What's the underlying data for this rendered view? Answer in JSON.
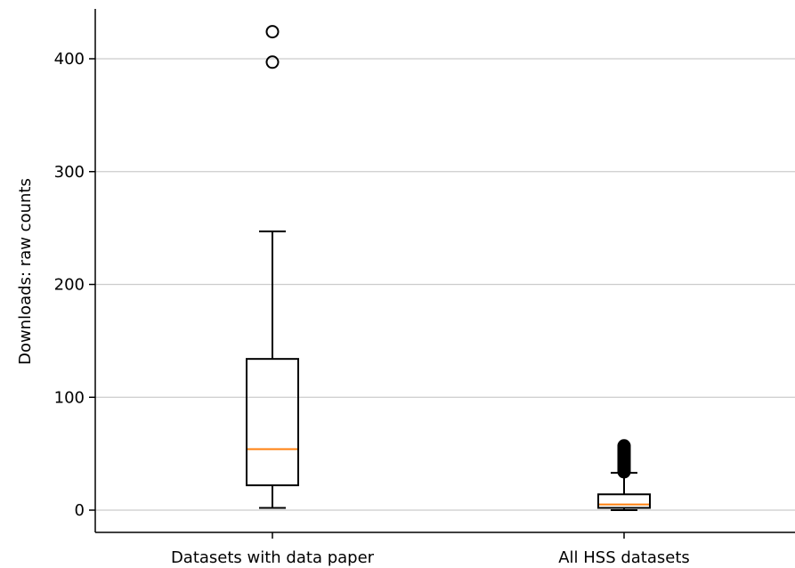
{
  "chart_data": {
    "type": "boxplot",
    "title": "",
    "xlabel": "",
    "ylabel": "Downloads: raw counts",
    "ylim": [
      -20,
      445
    ],
    "yticks": [
      0,
      100,
      200,
      300,
      400
    ],
    "grid": "y",
    "legend": "none",
    "colors": {
      "box": "#000000",
      "median": "#ff7f0e",
      "grid": "#cccccc"
    },
    "categories": [
      "Datasets with data paper",
      "All HSS datasets"
    ],
    "boxes": [
      {
        "name": "Datasets with data paper",
        "whisker_low": 2,
        "q1": 22,
        "median": 54,
        "q3": 134,
        "whisker_high": 247,
        "outliers": [
          397,
          424
        ]
      },
      {
        "name": "All HSS datasets",
        "whisker_low": 0,
        "q1": 2,
        "median": 5,
        "q3": 14,
        "whisker_high": 33,
        "outliers": [
          34,
          35,
          36,
          37,
          38,
          39,
          40,
          41,
          42,
          43,
          44,
          45,
          46,
          47,
          48,
          49,
          50,
          51,
          52,
          53,
          54,
          55,
          56,
          57
        ]
      }
    ]
  }
}
